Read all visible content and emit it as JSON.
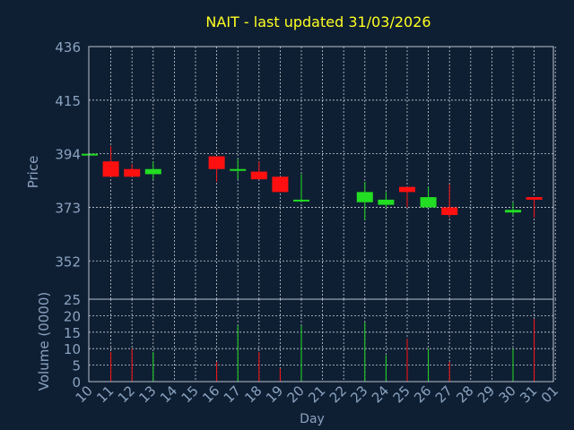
{
  "colors": {
    "background": "#0f1f33",
    "frame": "#b9c2ce",
    "grid": "#c7ced8",
    "title": "#ffff22",
    "label": "#8aa3c0",
    "up": "#22dd22",
    "down": "#ff1010"
  },
  "chart_data": [
    {
      "type": "candlestick",
      "title": "NAIT - last updated 31/03/2026",
      "ylabel": "Price",
      "ylim": [
        337,
        436
      ],
      "yticks": [
        436,
        415,
        394,
        373,
        352
      ],
      "grid": true,
      "x": [
        "10",
        "11",
        "12",
        "13",
        "14",
        "15",
        "16",
        "17",
        "18",
        "19",
        "20",
        "21",
        "22",
        "23",
        "24",
        "25",
        "26",
        "27",
        "28",
        "29",
        "30",
        "31",
        "01"
      ],
      "candles": [
        {
          "x": "10",
          "open": 394,
          "close": 394,
          "high": 394,
          "low": 394
        },
        {
          "x": "11",
          "open": 391,
          "close": 385,
          "high": 397,
          "low": 385
        },
        {
          "x": "12",
          "open": 388,
          "close": 385,
          "high": 390,
          "low": 385
        },
        {
          "x": "13",
          "open": 386,
          "close": 388,
          "high": 391,
          "low": 384
        },
        {
          "x": "16",
          "open": 393,
          "close": 388,
          "high": 393,
          "low": 383
        },
        {
          "x": "17",
          "open": 388,
          "close": 388,
          "high": 392,
          "low": 384
        },
        {
          "x": "18",
          "open": 387,
          "close": 384,
          "high": 391,
          "low": 384
        },
        {
          "x": "19",
          "open": 385,
          "close": 379,
          "high": 385,
          "low": 379
        },
        {
          "x": "20",
          "open": 376,
          "close": 376,
          "high": 386,
          "low": 375
        },
        {
          "x": "23",
          "open": 375,
          "close": 379,
          "high": 383,
          "low": 368
        },
        {
          "x": "24",
          "open": 374,
          "close": 376,
          "high": 379,
          "low": 373
        },
        {
          "x": "25",
          "open": 381,
          "close": 379,
          "high": 381,
          "low": 373
        },
        {
          "x": "26",
          "open": 373,
          "close": 377,
          "high": 381,
          "low": 373
        },
        {
          "x": "27",
          "open": 373,
          "close": 370,
          "high": 382,
          "low": 369
        },
        {
          "x": "30",
          "open": 371,
          "close": 372,
          "high": 375,
          "low": 370
        },
        {
          "x": "31",
          "open": 377,
          "close": 376,
          "high": 377,
          "low": 369
        }
      ]
    },
    {
      "type": "bar",
      "ylabel": "Volume (0000)",
      "xlabel": "Day",
      "ylim": [
        0,
        25
      ],
      "yticks": [
        25,
        20,
        15,
        10,
        5,
        0
      ],
      "grid": true,
      "x": [
        "10",
        "11",
        "12",
        "13",
        "14",
        "15",
        "16",
        "17",
        "18",
        "19",
        "20",
        "21",
        "22",
        "23",
        "24",
        "25",
        "26",
        "27",
        "28",
        "29",
        "30",
        "31",
        "01"
      ],
      "bars": [
        {
          "x": "11",
          "value": 9,
          "dir": "down"
        },
        {
          "x": "12",
          "value": 10,
          "dir": "down"
        },
        {
          "x": "13",
          "value": 9,
          "dir": "up"
        },
        {
          "x": "16",
          "value": 6,
          "dir": "down"
        },
        {
          "x": "17",
          "value": 17,
          "dir": "up"
        },
        {
          "x": "18",
          "value": 9,
          "dir": "down"
        },
        {
          "x": "19",
          "value": 4,
          "dir": "down"
        },
        {
          "x": "20",
          "value": 17,
          "dir": "up"
        },
        {
          "x": "23",
          "value": 18,
          "dir": "up"
        },
        {
          "x": "24",
          "value": 8,
          "dir": "up"
        },
        {
          "x": "25",
          "value": 13,
          "dir": "down"
        },
        {
          "x": "26",
          "value": 10,
          "dir": "up"
        },
        {
          "x": "27",
          "value": 6,
          "dir": "down"
        },
        {
          "x": "30",
          "value": 10,
          "dir": "up"
        },
        {
          "x": "31",
          "value": 19,
          "dir": "down"
        }
      ]
    }
  ]
}
